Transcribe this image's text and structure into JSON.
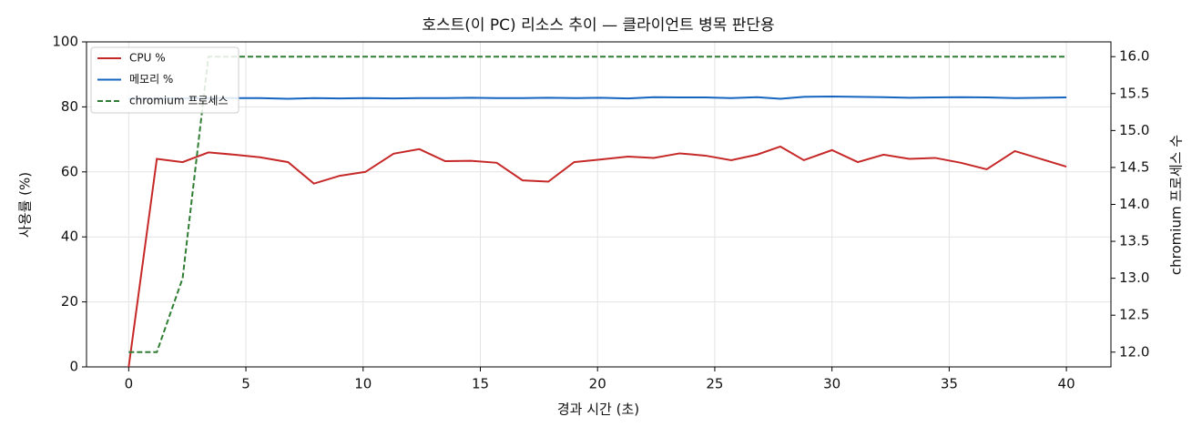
{
  "chart_data": {
    "type": "line",
    "title": "호스트(이 PC) 리소스 추이 — 클라이언트 병목 판단용",
    "x_label": "경과 시간 (초)",
    "y_label": "사용률 (%)",
    "y2_label": "chromium 프로세스 수",
    "x": [
      0,
      1.2,
      2.3,
      3.4,
      4.5,
      5.6,
      6.8,
      7.9,
      9.0,
      10.1,
      11.3,
      12.4,
      13.5,
      14.6,
      15.7,
      16.8,
      17.9,
      19.0,
      20.1,
      21.3,
      22.4,
      23.5,
      24.6,
      25.7,
      26.8,
      27.8,
      28.8,
      30.0,
      31.1,
      32.2,
      33.3,
      34.4,
      35.5,
      36.6,
      37.8,
      40.0
    ],
    "series": [
      {
        "name": "CPU %",
        "color": "#c62828",
        "dash": false,
        "values": [
          0,
          64,
          63,
          66,
          65.3,
          64.5,
          63,
          56.4,
          58.8,
          60,
          65.6,
          67,
          63.3,
          63.4,
          62.8,
          57.4,
          57,
          63,
          63.8,
          64.7,
          64.3,
          65.7,
          65,
          63.6,
          65.3,
          67.8,
          63.6,
          66.7,
          63,
          65.3,
          64,
          64.3,
          62.8,
          60.8,
          66.4,
          61.6
        ]
      },
      {
        "name": "메모리 %",
        "color": "#1565c0",
        "dash": false,
        "values": [
          82.5,
          82.6,
          82.6,
          82.7,
          82.7,
          82.7,
          82.5,
          82.7,
          82.6,
          82.7,
          82.6,
          82.7,
          82.7,
          82.8,
          82.7,
          82.7,
          82.8,
          82.7,
          82.8,
          82.6,
          83.0,
          82.9,
          82.9,
          82.7,
          83.0,
          82.5,
          83.1,
          83.2,
          83.1,
          83.0,
          82.8,
          82.9,
          83.0,
          82.9,
          82.7,
          82.9
        ]
      },
      {
        "name": "chromium 프로세스",
        "color": "#2e7d32",
        "dash": true,
        "axis": "y2",
        "values": [
          12,
          12,
          13,
          16,
          16,
          16,
          16,
          16,
          16,
          16,
          16,
          16,
          16,
          16,
          16,
          16,
          16,
          16,
          16,
          16,
          16,
          16,
          16,
          16,
          16,
          16,
          16,
          16,
          16,
          16,
          16,
          16,
          16,
          16,
          16,
          16
        ]
      }
    ],
    "xlim": [
      -1.8,
      41.9
    ],
    "xticks": [
      0,
      5,
      10,
      15,
      20,
      25,
      30,
      35,
      40
    ],
    "ylim": [
      0,
      100
    ],
    "yticks": [
      0,
      20,
      40,
      60,
      80,
      100
    ],
    "y2lim": [
      11.8,
      16.2
    ],
    "y2ticks": [
      {
        "value": 12,
        "label": "12.0"
      },
      {
        "value": 12.5,
        "label": "12.5"
      },
      {
        "value": 13,
        "label": "13.0"
      },
      {
        "value": 13.5,
        "label": "13.5"
      },
      {
        "value": 14,
        "label": "14.0"
      },
      {
        "value": 14.5,
        "label": "14.5"
      },
      {
        "value": 15,
        "label": "15.0"
      },
      {
        "value": 15.5,
        "label": "15.5"
      },
      {
        "value": 16,
        "label": "16.0"
      }
    ],
    "grid": true,
    "legend": "upper-left"
  }
}
